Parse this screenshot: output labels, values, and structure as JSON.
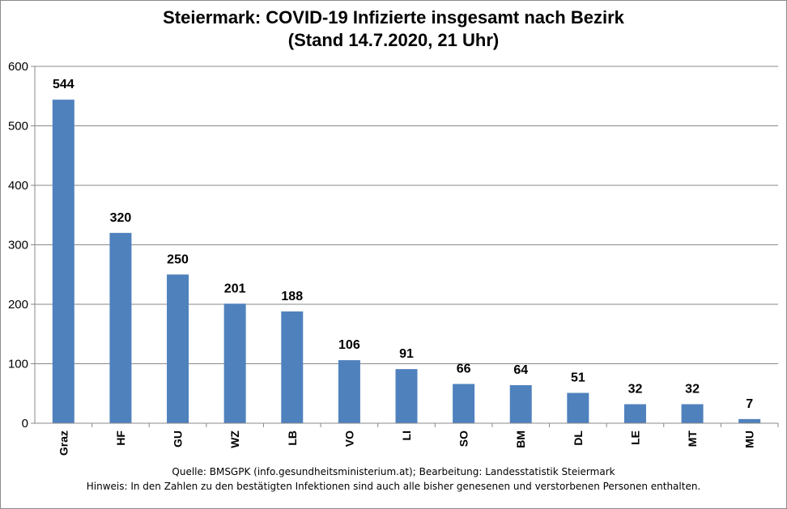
{
  "chart_data": {
    "type": "bar",
    "title": "Steiermark:  COVID-19 Infizierte insgesamt nach Bezirk",
    "subtitle": "(Stand 14.7.2020, 21 Uhr)",
    "categories": [
      "Graz",
      "HF",
      "GU",
      "WZ",
      "LB",
      "VO",
      "LI",
      "SO",
      "BM",
      "DL",
      "LE",
      "MT",
      "MU"
    ],
    "values": [
      544,
      320,
      250,
      201,
      188,
      106,
      91,
      66,
      64,
      51,
      32,
      32,
      7
    ],
    "data_labels": [
      "544",
      "320",
      "250",
      "201",
      "188",
      "106",
      "91",
      "66",
      "64",
      "51",
      "32",
      "32",
      "7"
    ],
    "xlabel": "",
    "ylabel": "",
    "ylim": [
      0,
      600
    ],
    "yticks": [
      0,
      100,
      200,
      300,
      400,
      500,
      600
    ],
    "ytick_labels": [
      "0",
      "100",
      "200",
      "300",
      "400",
      "500",
      "600"
    ],
    "grid": true,
    "legend": "none",
    "bar_color": "#4f81bd",
    "grid_color": "#898989"
  },
  "footer": {
    "source": "Quelle: BMSGPK (info.gesundheitsministerium.at); Bearbeitung: Landesstatistik Steiermark",
    "note": "Hinweis: In den Zahlen zu den bestätigten Infektionen sind auch alle bisher genesenen und verstorbenen Personen enthalten."
  }
}
